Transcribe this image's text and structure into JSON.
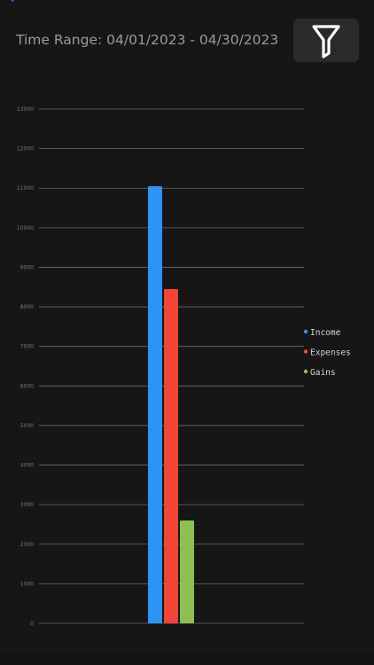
{
  "header": {
    "time_range": "Time Range: 04/01/2023 - 04/30/2023",
    "back_icon": "chevron-left-icon",
    "filter_icon": "funnel-icon"
  },
  "colors": {
    "background": "#161616",
    "button": "#2a2a2a",
    "income": "#2b95f5",
    "expenses": "#f24536",
    "gains": "#8ec04f",
    "grid": "#6a6a6a"
  },
  "chart_data": {
    "type": "bar",
    "categories": [
      ""
    ],
    "series": [
      {
        "name": "Income",
        "values": [
          11050
        ]
      },
      {
        "name": "Expenses",
        "values": [
          8450
        ]
      },
      {
        "name": "Gains",
        "values": [
          2600
        ]
      }
    ],
    "y_ticks": [
      "0",
      "1000",
      "2000",
      "3000",
      "4000",
      "5000",
      "6000",
      "7000",
      "8000",
      "9000",
      "10000",
      "11000",
      "12000",
      "13000"
    ],
    "ylim": [
      0,
      13000
    ],
    "grid": true,
    "legend_position": "right"
  }
}
